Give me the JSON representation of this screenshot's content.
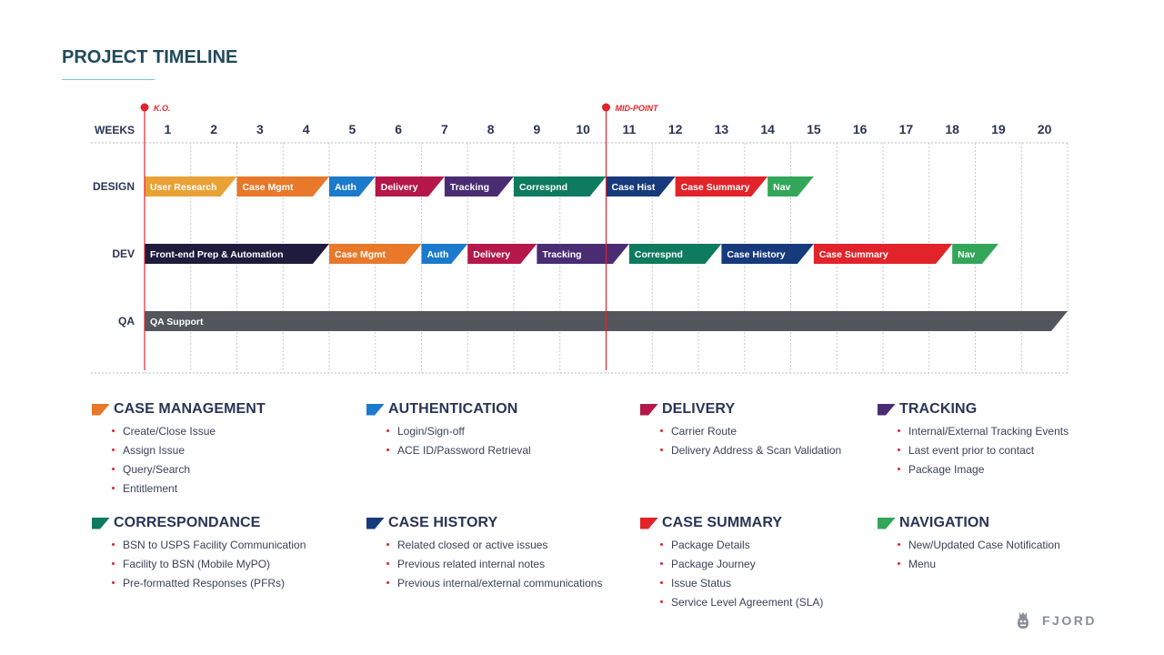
{
  "title": "PROJECT TIMELINE",
  "brand": {
    "name": "FJORD",
    "logo_icon": "fjord-logo-icon"
  },
  "colors": {
    "case_management": "#e8782a",
    "authentication": "#1b7acb",
    "delivery": "#b5174a",
    "tracking": "#4a2c72",
    "correspondance": "#0e7a5e",
    "case_history": "#163a7c",
    "case_summary": "#e2232a",
    "navigation": "#33a65a",
    "user_research": "#eaa136",
    "frontend_prep": "#1e1b3d",
    "qa_support": "#53565c",
    "milestone": "#e0242c",
    "heading": "#21495a",
    "text": "#2a3456"
  },
  "chart_data": {
    "type": "gantt",
    "xlabel": "WEEKS",
    "weeks": [
      "1",
      "2",
      "3",
      "4",
      "5",
      "6",
      "7",
      "8",
      "9",
      "10",
      "11",
      "12",
      "13",
      "14",
      "15",
      "16",
      "17",
      "18",
      "19",
      "20"
    ],
    "xlim": [
      1,
      21
    ],
    "grid": true,
    "milestones": [
      {
        "label": "K.O.",
        "week": 1
      },
      {
        "label": "MID-POINT",
        "week": 11
      }
    ],
    "rows": [
      {
        "name": "DESIGN",
        "tasks": [
          {
            "label": "User Research",
            "start": 1,
            "end": 3,
            "color": "#eaa136"
          },
          {
            "label": "Case Mgmt",
            "start": 3,
            "end": 5,
            "color": "#e8782a"
          },
          {
            "label": "Auth",
            "start": 5,
            "end": 6,
            "color": "#1b7acb"
          },
          {
            "label": "Delivery",
            "start": 6,
            "end": 7.5,
            "color": "#b5174a"
          },
          {
            "label": "Tracking",
            "start": 7.5,
            "end": 9,
            "color": "#4a2c72"
          },
          {
            "label": "Correspnd",
            "start": 9,
            "end": 11,
            "color": "#0e7a5e"
          },
          {
            "label": "Case Hist",
            "start": 11,
            "end": 12.5,
            "color": "#163a7c"
          },
          {
            "label": "Case Summary",
            "start": 12.5,
            "end": 14.5,
            "color": "#e2232a"
          },
          {
            "label": "Nav",
            "start": 14.5,
            "end": 15.5,
            "color": "#33a65a"
          }
        ]
      },
      {
        "name": "DEV",
        "tasks": [
          {
            "label": "Front-end Prep & Automation",
            "start": 1,
            "end": 5,
            "color": "#1e1b3d"
          },
          {
            "label": "Case Mgmt",
            "start": 5,
            "end": 7,
            "color": "#e8782a"
          },
          {
            "label": "Auth",
            "start": 7,
            "end": 8,
            "color": "#1b7acb"
          },
          {
            "label": "Delivery",
            "start": 8,
            "end": 9.5,
            "color": "#b5174a"
          },
          {
            "label": "Tracking",
            "start": 9.5,
            "end": 11.5,
            "color": "#4a2c72"
          },
          {
            "label": "Correspnd",
            "start": 11.5,
            "end": 13.5,
            "color": "#0e7a5e"
          },
          {
            "label": "Case History",
            "start": 13.5,
            "end": 15.5,
            "color": "#163a7c"
          },
          {
            "label": "Case Summary",
            "start": 15.5,
            "end": 18.5,
            "color": "#e2232a"
          },
          {
            "label": "Nav",
            "start": 18.5,
            "end": 19.5,
            "color": "#33a65a"
          }
        ]
      },
      {
        "name": "QA",
        "tasks": [
          {
            "label": "QA Support",
            "start": 1,
            "end": 21,
            "color": "#53565c"
          }
        ]
      }
    ]
  },
  "legend": [
    {
      "title": "CASE MANAGEMENT",
      "color": "#e8782a",
      "items": [
        "Create/Close Issue",
        "Assign Issue",
        "Query/Search",
        "Entitlement"
      ]
    },
    {
      "title": "AUTHENTICATION",
      "color": "#1b7acb",
      "items": [
        "Login/Sign-off",
        "ACE ID/Password Retrieval"
      ]
    },
    {
      "title": "DELIVERY",
      "color": "#b5174a",
      "items": [
        "Carrier Route",
        "Delivery Address & Scan Validation"
      ]
    },
    {
      "title": "TRACKING",
      "color": "#4a2c72",
      "items": [
        "Internal/External Tracking Events",
        "Last event prior to contact",
        "Package Image"
      ]
    },
    {
      "title": "CORRESPONDANCE",
      "color": "#0e7a5e",
      "items": [
        "BSN to USPS Facility Communication",
        "Facility to BSN (Mobile MyPO)",
        "Pre-formatted Responses (PFRs)"
      ]
    },
    {
      "title": "CASE HISTORY",
      "color": "#163a7c",
      "items": [
        "Related closed or active issues",
        "Previous related internal notes",
        "Previous internal/external communications"
      ]
    },
    {
      "title": "CASE SUMMARY",
      "color": "#e2232a",
      "items": [
        "Package Details",
        "Package Journey",
        "Issue Status",
        "Service Level Agreement (SLA)"
      ]
    },
    {
      "title": "NAVIGATION",
      "color": "#33a65a",
      "items": [
        "New/Updated Case Notification",
        "Menu"
      ]
    }
  ]
}
